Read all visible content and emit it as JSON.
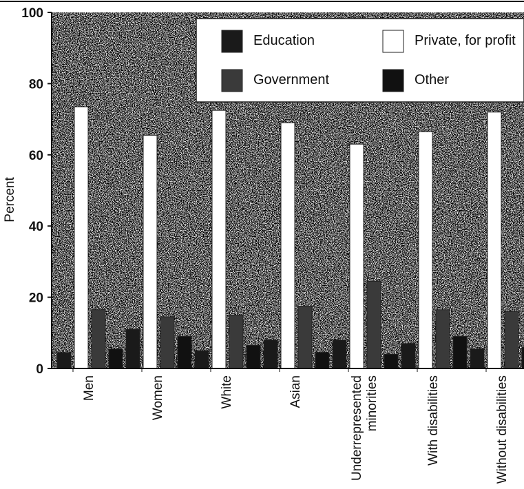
{
  "chart_data": {
    "type": "bar",
    "ylabel": "Percent",
    "xlabel": "",
    "title": "",
    "ylim": [
      0,
      100
    ],
    "yticks": [
      "0",
      "20",
      "40",
      "60",
      "80",
      "100"
    ],
    "categories": [
      [
        "Men"
      ],
      [
        "Women"
      ],
      [
        "White"
      ],
      [
        "Asian"
      ],
      [
        "Underrepresented",
        "minorities"
      ],
      [
        "With disabilities"
      ],
      [
        "Without disabilities"
      ]
    ],
    "series": [
      {
        "name": "Education",
        "color": "#1a1a1a",
        "values": [
          4.5,
          11,
          5,
          8,
          8,
          7,
          5.5
        ]
      },
      {
        "name": "Private, for profit",
        "color": "#ffffff",
        "values": [
          73.5,
          65.5,
          72.5,
          69,
          63,
          66.5,
          72
        ]
      },
      {
        "name": "Government",
        "color": "#3a3a3a",
        "values": [
          16.5,
          14.5,
          15,
          17.5,
          24.5,
          16.5,
          16
        ]
      },
      {
        "name": "Other",
        "color": "#111111",
        "values": [
          5.5,
          9,
          6.5,
          4.5,
          4,
          9,
          6
        ]
      }
    ],
    "legend": {
      "placement": "top-right",
      "rows": [
        [
          "Education",
          "Private, for profit"
        ],
        [
          "Government",
          "Other"
        ]
      ]
    },
    "grid": false
  }
}
